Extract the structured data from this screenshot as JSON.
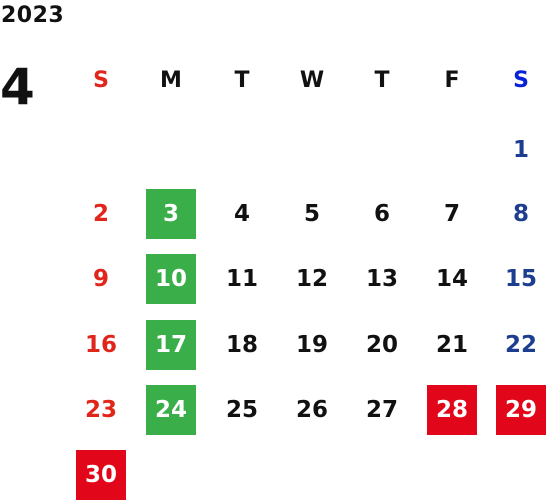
{
  "header": {
    "year": "2023",
    "month": "4"
  },
  "weekdays": [
    "S",
    "M",
    "T",
    "W",
    "T",
    "F",
    "S"
  ],
  "weeks": [
    [
      "",
      "",
      "",
      "",
      "",
      "",
      "1"
    ],
    [
      "2",
      "3",
      "4",
      "5",
      "6",
      "7",
      "8"
    ],
    [
      "9",
      "10",
      "11",
      "12",
      "13",
      "14",
      "15"
    ],
    [
      "16",
      "17",
      "18",
      "19",
      "20",
      "21",
      "22"
    ],
    [
      "23",
      "24",
      "25",
      "26",
      "27",
      "28",
      "29"
    ],
    [
      "30",
      "",
      "",
      "",
      "",
      "",
      ""
    ]
  ],
  "highlights": {
    "green": [
      "3",
      "10",
      "17",
      "24"
    ],
    "red": [
      "28",
      "29",
      "30"
    ]
  },
  "colors": {
    "sunday": "#e0251b",
    "saturday": "#1d3d8f",
    "saturday_header": "#0a22d6",
    "weekday": "#111111",
    "green_highlight": "#3aae49",
    "red_highlight": "#e2061b"
  }
}
